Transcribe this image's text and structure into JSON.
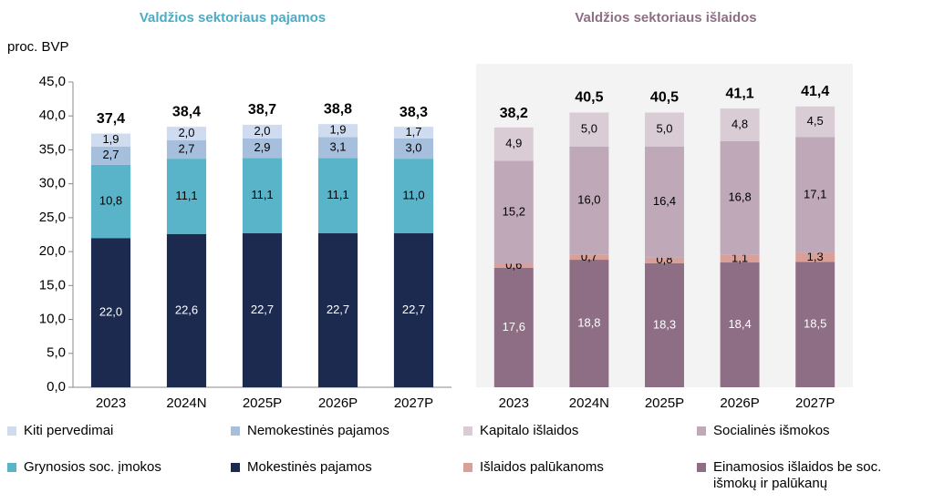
{
  "chart_data": [
    {
      "type": "stacked_bar",
      "title": "Valdžios sektoriaus pajamos",
      "title_color": "#4bacc6",
      "ylabel": "proc. BVP",
      "categories": [
        "2023",
        "2024N",
        "2025P",
        "2026P",
        "2027P"
      ],
      "ylim": [
        0,
        45
      ],
      "yticks": [
        {
          "value": 0,
          "label": "0,0"
        },
        {
          "value": 5,
          "label": "5,0"
        },
        {
          "value": 10,
          "label": "10,0"
        },
        {
          "value": 15,
          "label": "15,0"
        },
        {
          "value": 20,
          "label": "20,0"
        },
        {
          "value": 25,
          "label": "25,0"
        },
        {
          "value": 30,
          "label": "30,0"
        },
        {
          "value": 35,
          "label": "35,0"
        },
        {
          "value": 40,
          "label": "40,0"
        },
        {
          "value": 45,
          "label": "45,0"
        }
      ],
      "series": [
        {
          "name": "Mokestinės pajamos",
          "color": "#1c2a4f",
          "label_color": "#ffffff",
          "values": [
            22.0,
            22.6,
            22.7,
            22.7,
            22.7
          ],
          "value_labels": [
            "22,0",
            "22,6",
            "22,7",
            "22,7",
            "22,7"
          ]
        },
        {
          "name": "Grynosios soc. įmokos",
          "color": "#5ab4c9",
          "label_color": "#000000",
          "values": [
            10.8,
            11.1,
            11.1,
            11.1,
            11.0
          ],
          "value_labels": [
            "10,8",
            "11,1",
            "11,1",
            "11,1",
            "11,0"
          ]
        },
        {
          "name": "Nemokestinės pajamos",
          "color": "#a6bfdd",
          "label_color": "#000000",
          "values": [
            2.7,
            2.7,
            2.9,
            3.1,
            3.0
          ],
          "value_labels": [
            "2,7",
            "2,7",
            "2,9",
            "3,1",
            "3,0"
          ]
        },
        {
          "name": "Kiti pervedimai",
          "color": "#cfdcef",
          "label_color": "#000000",
          "values": [
            1.9,
            2.0,
            2.0,
            1.9,
            1.7
          ],
          "value_labels": [
            "1,9",
            "2,0",
            "2,0",
            "1,9",
            "1,7"
          ]
        }
      ],
      "totals": [
        37.4,
        38.4,
        38.7,
        38.8,
        38.3
      ],
      "total_labels": [
        "37,4",
        "38,4",
        "38,7",
        "38,8",
        "38,3"
      ]
    },
    {
      "type": "stacked_bar",
      "title": "Valdžios sektoriaus išlaidos",
      "title_color": "#8e6e85",
      "categories": [
        "2023",
        "2024N",
        "2025P",
        "2026P",
        "2027P"
      ],
      "ylim": [
        0,
        45
      ],
      "series": [
        {
          "name": "Einamosios išlaidos be soc. išmokų ir palūkanų",
          "color": "#8e6e85",
          "label_color": "#ffffff",
          "values": [
            17.6,
            18.8,
            18.3,
            18.4,
            18.5
          ],
          "value_labels": [
            "17,6",
            "18,8",
            "18,3",
            "18,4",
            "18,5"
          ]
        },
        {
          "name": "Išlaidos palūkanoms",
          "color": "#d9a09a",
          "label_color": "#000000",
          "values": [
            0.6,
            0.7,
            0.8,
            1.1,
            1.3
          ],
          "value_labels": [
            "0,6",
            "0,7",
            "0,8",
            "1,1",
            "1,3"
          ]
        },
        {
          "name": "Socialinės išmokos",
          "color": "#bfa8b8",
          "label_color": "#000000",
          "values": [
            15.2,
            16.0,
            16.4,
            16.8,
            17.1
          ],
          "value_labels": [
            "15,2",
            "16,0",
            "16,4",
            "16,8",
            "17,1"
          ]
        },
        {
          "name": "Kapitalo išlaidos",
          "color": "#d9ccd5",
          "label_color": "#000000",
          "values": [
            4.9,
            5.0,
            5.0,
            4.8,
            4.5
          ],
          "value_labels": [
            "4,9",
            "5,0",
            "5,0",
            "4,8",
            "4,5"
          ]
        }
      ],
      "totals": [
        38.2,
        40.5,
        40.5,
        41.1,
        41.4
      ],
      "total_labels": [
        "38,2",
        "40,5",
        "40,5",
        "41,1",
        "41,4"
      ]
    }
  ]
}
